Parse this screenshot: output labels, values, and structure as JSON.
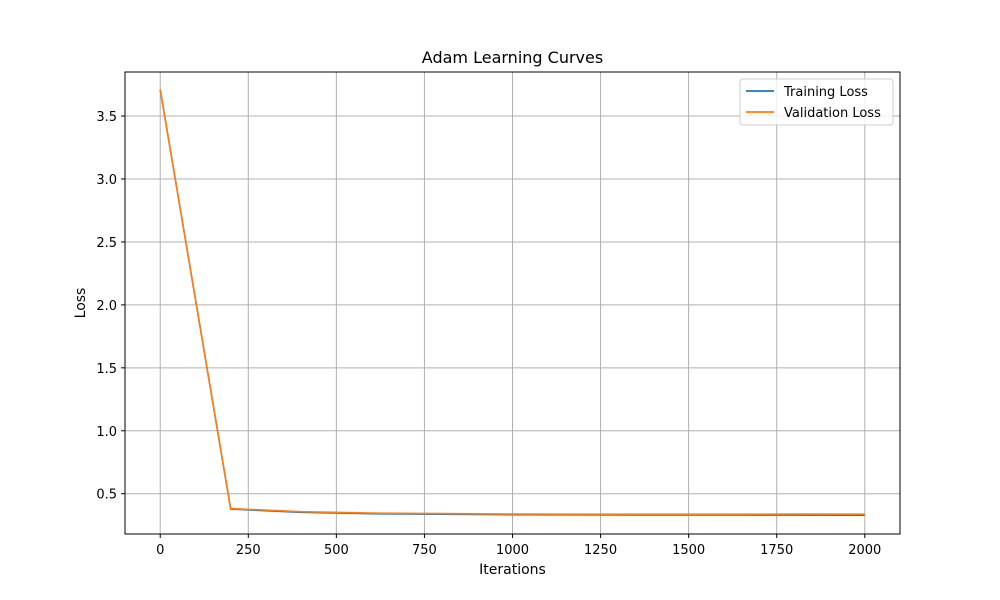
{
  "chart_data": {
    "type": "line",
    "title": "Adam Learning Curves",
    "xlabel": "Iterations",
    "ylabel": "Loss",
    "xlim": [
      -100,
      2100
    ],
    "ylim": [
      0.18,
      3.85
    ],
    "xticks": [
      0,
      250,
      500,
      750,
      1000,
      1250,
      1500,
      1750,
      2000
    ],
    "xtick_labels": [
      "0",
      "250",
      "500",
      "750",
      "1000",
      "1250",
      "1500",
      "1750",
      "2000"
    ],
    "yticks": [
      0.5,
      1.0,
      1.5,
      2.0,
      2.5,
      3.0,
      3.5
    ],
    "ytick_labels": [
      "0.5",
      "1.0",
      "1.5",
      "2.0",
      "2.5",
      "3.0",
      "3.5"
    ],
    "grid": true,
    "legend_position": "top-right",
    "x": [
      0,
      200,
      400,
      600,
      800,
      1000,
      1200,
      1400,
      1600,
      1800,
      2000
    ],
    "series": [
      {
        "name": "Training Loss",
        "color": "#1f77b4",
        "values": [
          3.71,
          0.378,
          0.352,
          0.341,
          0.337,
          0.333,
          0.332,
          0.331,
          0.331,
          0.33,
          0.329
        ]
      },
      {
        "name": "Validation Loss",
        "color": "#ff7f0e",
        "values": [
          3.71,
          0.382,
          0.357,
          0.346,
          0.342,
          0.338,
          0.337,
          0.337,
          0.337,
          0.338,
          0.337
        ]
      }
    ]
  }
}
